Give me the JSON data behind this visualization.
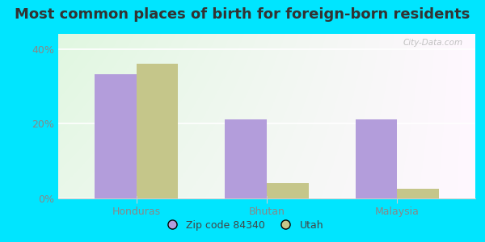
{
  "title": "Most common places of birth for foreign-born residents",
  "categories": [
    "Honduras",
    "Bhutan",
    "Malaysia"
  ],
  "zip_values": [
    33.3,
    21.1,
    21.1
  ],
  "utah_values": [
    36.0,
    4.0,
    2.5
  ],
  "zip_color": "#b39ddb",
  "utah_color": "#c5c68a",
  "background_outer": "#00e5ff",
  "ylim": [
    0,
    44
  ],
  "yticks": [
    0,
    20,
    40
  ],
  "ytick_labels": [
    "0%",
    "20%",
    "40%"
  ],
  "legend_zip_label": "Zip code 84340",
  "legend_utah_label": "Utah",
  "title_fontsize": 13,
  "bar_width": 0.32,
  "watermark_text": "City-Data.com"
}
